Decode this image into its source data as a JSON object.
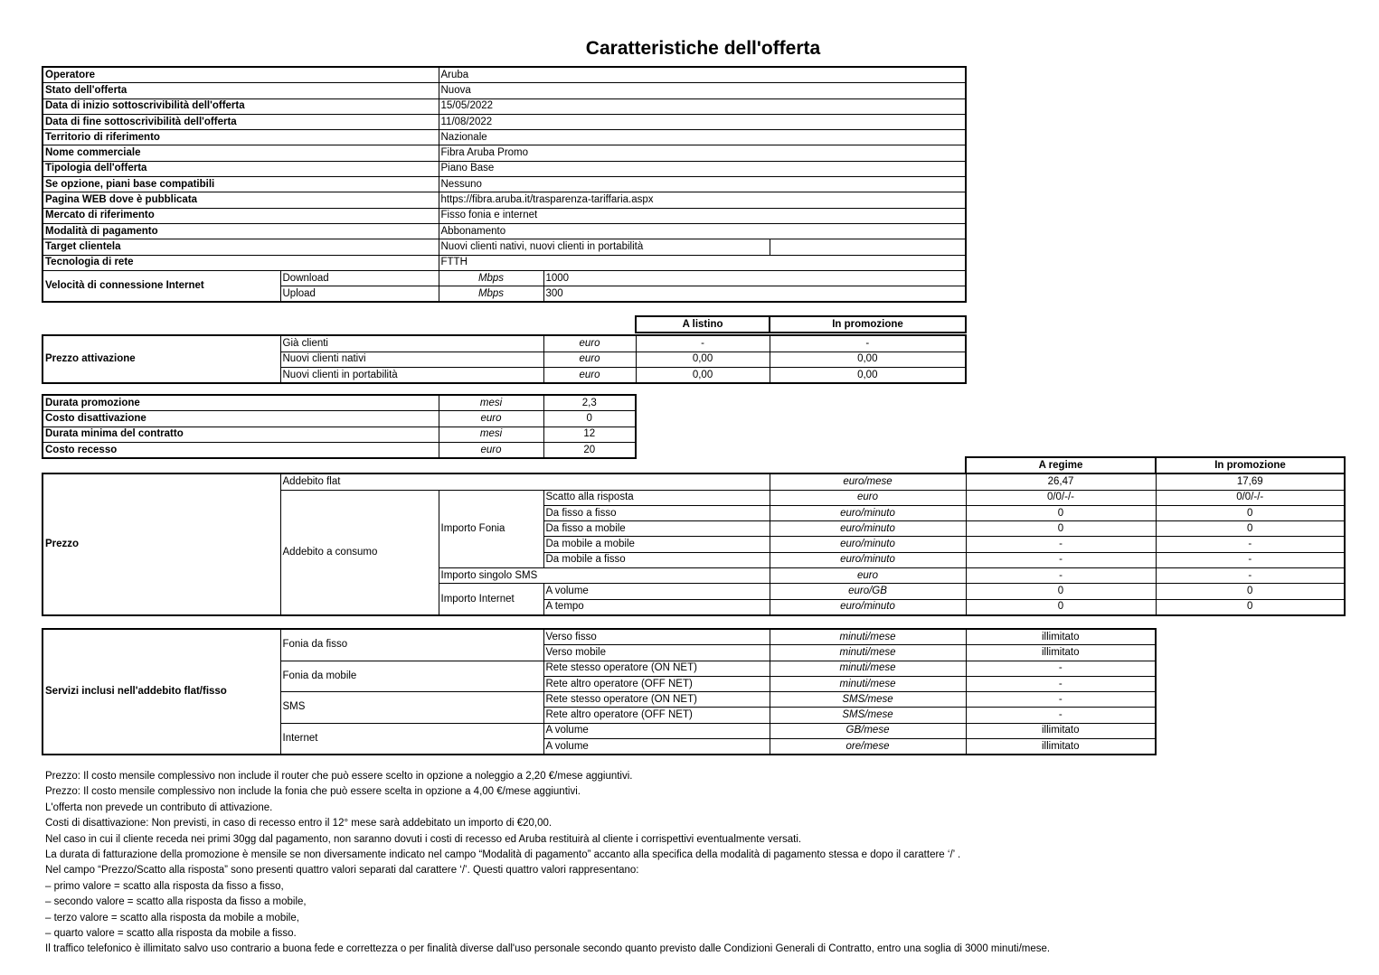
{
  "title": "Caratteristiche dell'offerta",
  "offer": {
    "rows": [
      {
        "label": "Operatore",
        "value": "Aruba"
      },
      {
        "label": "Stato dell'offerta",
        "value": "Nuova"
      },
      {
        "label": "Data di inizio sottoscrivibilità dell'offerta",
        "value": "15/05/2022"
      },
      {
        "label": "Data di fine sottoscrivibilità dell'offerta",
        "value": "11/08/2022"
      },
      {
        "label": "Territorio di riferimento",
        "value": "Nazionale"
      },
      {
        "label": "Nome commerciale",
        "value": "Fibra Aruba Promo"
      },
      {
        "label": "Tipologia dell'offerta",
        "value": "Piano Base"
      },
      {
        "label": "Se opzione, piani base compatibili",
        "value": "Nessuno"
      },
      {
        "label": "Pagina WEB dove è pubblicata",
        "value": "https://fibra.aruba.it/trasparenza-tariffaria.aspx"
      },
      {
        "label": "Mercato di riferimento",
        "value": "Fisso fonia e internet"
      },
      {
        "label": "Modalità di pagamento",
        "value": "Abbonamento"
      },
      {
        "label": "Target clientela",
        "value": "Nuovi clienti nativi, nuovi clienti in portabilità"
      },
      {
        "label": "Tecnologia di rete",
        "value": "FTTH"
      }
    ],
    "speed": {
      "label": "Velocità di connessione Internet",
      "download": {
        "label": "Download",
        "unit": "Mbps",
        "value": "1000"
      },
      "upload": {
        "label": "Upload",
        "unit": "Mbps",
        "value": "300"
      }
    }
  },
  "activation": {
    "headers": [
      "A listino",
      "In promozione"
    ],
    "label": "Prezzo attivazione",
    "rows": [
      {
        "label": "Già clienti",
        "unit": "euro",
        "listino": "-",
        "promo": "-"
      },
      {
        "label": "Nuovi clienti nativi",
        "unit": "euro",
        "listino": "0,00",
        "promo": "0,00"
      },
      {
        "label": "Nuovi clienti in portabilità",
        "unit": "euro",
        "listino": "0,00",
        "promo": "0,00"
      }
    ]
  },
  "terms": {
    "rows": [
      {
        "label": "Durata promozione",
        "unit": "mesi",
        "value": "2,3"
      },
      {
        "label": "Costo disattivazione",
        "unit": "euro",
        "value": "0"
      },
      {
        "label": "Durata minima del contratto",
        "unit": "mesi",
        "value": "12"
      },
      {
        "label": "Costo recesso",
        "unit": "euro",
        "value": "20"
      }
    ]
  },
  "price": {
    "headers": [
      "A regime",
      "In promozione"
    ],
    "label": "Prezzo",
    "flat": {
      "label": "Addebito flat",
      "unit": "euro/mese",
      "regime": "26,47",
      "promo": "17,69"
    },
    "consumo_label": "Addebito a consumo",
    "fonia_label": "Importo Fonia",
    "fonia_rows": [
      {
        "label": "Scatto alla risposta",
        "unit": "euro",
        "regime": "0/0/-/-",
        "promo": "0/0/-/-"
      },
      {
        "label": "Da fisso a fisso",
        "unit": "euro/minuto",
        "regime": "0",
        "promo": "0"
      },
      {
        "label": "Da fisso a mobile",
        "unit": "euro/minuto",
        "regime": "0",
        "promo": "0"
      },
      {
        "label": "Da mobile a mobile",
        "unit": "euro/minuto",
        "regime": "-",
        "promo": "-"
      },
      {
        "label": "Da mobile a fisso",
        "unit": "euro/minuto",
        "regime": "-",
        "promo": "-"
      }
    ],
    "sms": {
      "label": "Importo singolo SMS",
      "unit": "euro",
      "regime": "-",
      "promo": "-"
    },
    "internet_label": "Importo Internet",
    "internet_rows": [
      {
        "label": "A volume",
        "unit": "euro/GB",
        "regime": "0",
        "promo": "0"
      },
      {
        "label": "A tempo",
        "unit": "euro/minuto",
        "regime": "0",
        "promo": "0"
      }
    ]
  },
  "services": {
    "label": "Servizi inclusi nell'addebito flat/fisso",
    "groups": [
      {
        "label": "Fonia da fisso",
        "rows": [
          {
            "label": "Verso fisso",
            "unit": "minuti/mese",
            "value": "illimitato"
          },
          {
            "label": "Verso mobile",
            "unit": "minuti/mese",
            "value": "illimitato"
          }
        ]
      },
      {
        "label": "Fonia da mobile",
        "rows": [
          {
            "label": "Rete stesso operatore (ON NET)",
            "unit": "minuti/mese",
            "value": "-"
          },
          {
            "label": "Rete altro operatore (OFF NET)",
            "unit": "minuti/mese",
            "value": "-"
          }
        ]
      },
      {
        "label": "SMS",
        "rows": [
          {
            "label": "Rete stesso operatore (ON NET)",
            "unit": "SMS/mese",
            "value": "-"
          },
          {
            "label": "Rete altro operatore (OFF NET)",
            "unit": "SMS/mese",
            "value": "-"
          }
        ]
      },
      {
        "label": "Internet",
        "rows": [
          {
            "label": "A volume",
            "unit": "GB/mese",
            "value": "illimitato"
          },
          {
            "label": "A volume",
            "unit": "ore/mese",
            "value": "illimitato"
          }
        ]
      }
    ]
  },
  "notes": [
    "Prezzo: Il costo mensile complessivo non include il router che può essere scelto in opzione a noleggio a 2,20 €/mese aggiuntivi.",
    "Prezzo: Il costo mensile complessivo non include la fonia che può essere scelta in opzione a 4,00 €/mese aggiuntivi.",
    "L'offerta non prevede un contributo di attivazione.",
    "Costi di disattivazione: Non previsti, in caso di recesso entro il 12° mese sarà addebitato un importo di €20,00.",
    "Nel caso in cui il cliente receda nei primi 30gg dal pagamento, non saranno dovuti i costi di recesso ed Aruba restituirà al cliente i corrispettivi eventualmente versati.",
    "La durata di fatturazione della promozione è mensile se non diversamente indicato nel campo “Modalità di pagamento” accanto alla specifica della modalità di pagamento stessa e dopo il carattere ‘/’ .",
    "Nel campo “Prezzo/Scatto alla risposta” sono presenti quattro valori separati dal carattere ‘/’. Questi quattro valori rappresentano:",
    "– primo valore = scatto alla risposta da fisso a fisso,",
    "– secondo valore = scatto alla risposta da fisso a mobile,",
    "– terzo valore = scatto alla risposta da mobile a mobile,",
    "– quarto valore = scatto alla risposta da mobile a fisso.",
    "Il traffico telefonico è illimitato salvo uso contrario a buona fede e correttezza o per finalità diverse dall'uso personale secondo quanto previsto dalle Condizioni Generali di Contratto, entro una soglia di 3000 minuti/mese."
  ]
}
